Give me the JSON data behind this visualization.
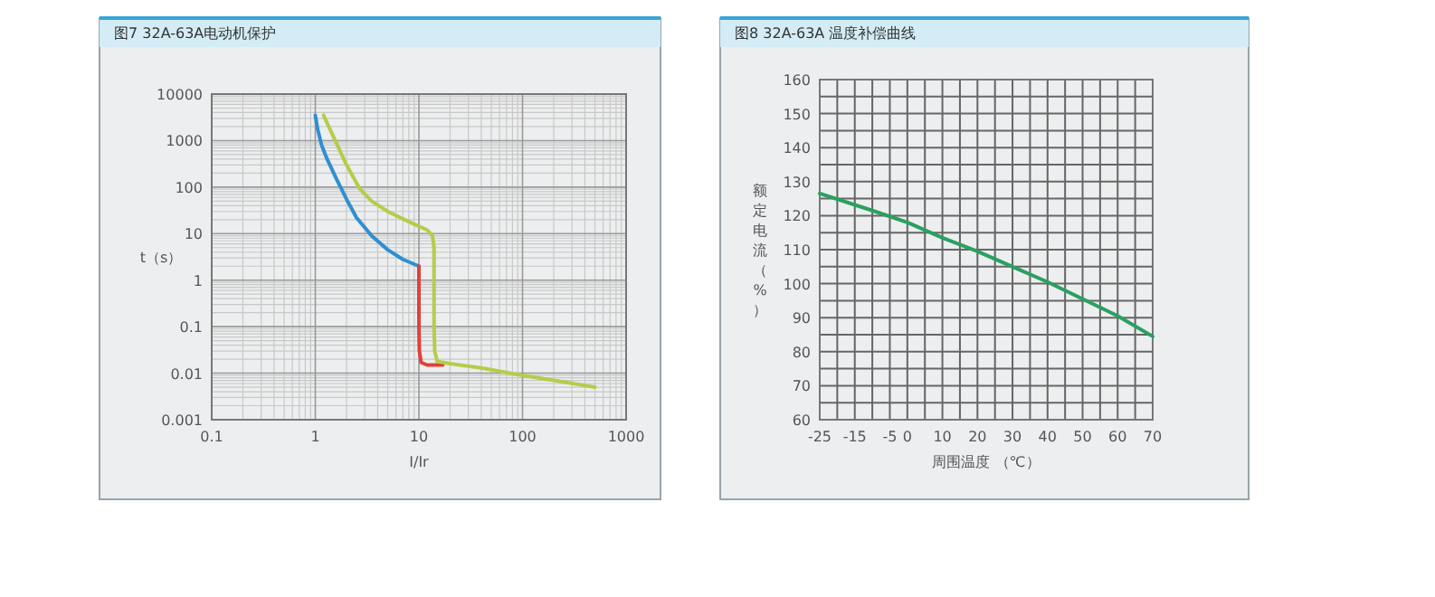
{
  "chart_data": [
    {
      "type": "line",
      "title": "图7 32A-63A电动机保护",
      "xlabel": "I/Ir",
      "ylabel": "t（s）",
      "log": "xy",
      "grid": true,
      "xlim": [
        0.1,
        1000
      ],
      "xticks": [
        0.1,
        1,
        10,
        100,
        1000
      ],
      "ylim": [
        0.001,
        10000
      ],
      "yticks": [
        0.001,
        0.01,
        0.1,
        1,
        10,
        100,
        1000,
        10000
      ],
      "series": [
        {
          "color": "#2f8fd0",
          "x": [
            1,
            1.05,
            1.15,
            1.3,
            1.6,
            2,
            2.5,
            3.5,
            5,
            7,
            10
          ],
          "values": [
            3500,
            1800,
            800,
            400,
            150,
            55,
            22,
            9,
            4.5,
            2.8,
            2
          ]
        },
        {
          "color": "#e0413a",
          "x": [
            10,
            10,
            10,
            10.1,
            10.5,
            12,
            17
          ],
          "values": [
            2,
            0.5,
            0.1,
            0.03,
            0.017,
            0.015,
            0.015
          ]
        },
        {
          "color": "#b5cc4a",
          "x": [
            1.2,
            1.5,
            2,
            2.7,
            3.5,
            5,
            8,
            12,
            13.5,
            14,
            14,
            14,
            14.2,
            15,
            20,
            40,
            100,
            200,
            500
          ],
          "values": [
            3500,
            1200,
            300,
            90,
            50,
            30,
            18,
            12,
            9,
            5,
            1,
            0.1,
            0.03,
            0.018,
            0.016,
            0.013,
            0.009,
            0.007,
            0.005
          ]
        }
      ]
    },
    {
      "type": "line",
      "title": "图8 32A-63A 温度补偿曲线",
      "xlabel": "周围温度 （℃）",
      "ylabel": "额定电流（%）",
      "grid": true,
      "xlim": [
        -25,
        70
      ],
      "xticks": [
        -25,
        {
          "value": -20,
          "label": null
        },
        -15,
        {
          "value": -10,
          "label": null
        },
        -5,
        0,
        {
          "value": 5,
          "label": null
        },
        10,
        {
          "value": 15,
          "label": null
        },
        20,
        {
          "value": 25,
          "label": null
        },
        30,
        {
          "value": 35,
          "label": null
        },
        40,
        {
          "value": 45,
          "label": null
        },
        50,
        {
          "value": 55,
          "label": null
        },
        60,
        {
          "value": 65,
          "label": null
        },
        70
      ],
      "ylim": [
        60,
        160
      ],
      "yticks": [
        60,
        {
          "value": 65,
          "label": null
        },
        70,
        {
          "value": 75,
          "label": null
        },
        80,
        {
          "value": 85,
          "label": null
        },
        90,
        {
          "value": 95,
          "label": null
        },
        100,
        {
          "value": 105,
          "label": null
        },
        110,
        {
          "value": 115,
          "label": null
        },
        120,
        {
          "value": 125,
          "label": null
        },
        130,
        {
          "value": 135,
          "label": null
        },
        140,
        {
          "value": 145,
          "label": null
        },
        150,
        {
          "value": 155,
          "label": null
        },
        160
      ],
      "series": [
        {
          "color": "#2aa060",
          "x": [
            -25,
            -10,
            0,
            10,
            20,
            30,
            40,
            50,
            60,
            70
          ],
          "values": [
            126.5,
            121.5,
            118,
            113.5,
            109.5,
            105,
            100.5,
            95.5,
            90.5,
            84.5
          ]
        }
      ]
    }
  ]
}
